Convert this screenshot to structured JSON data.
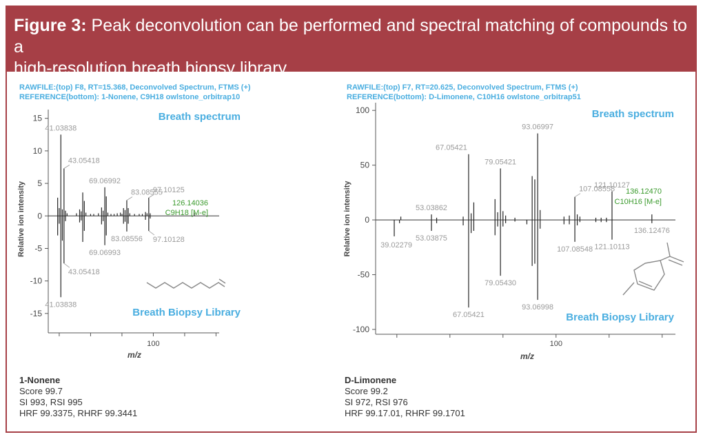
{
  "figure": {
    "label": "Figure 3:",
    "caption_line1": " Peak deconvolution can be performed and spectral matching of compounds to a",
    "caption_line2": "high-resolution breath biopsy library."
  },
  "colors": {
    "frame": "#a63f46",
    "accent": "#4aaee0",
    "green": "#3a9a2c",
    "peak_label": "#9a9a9a",
    "line": "#222222"
  },
  "chart_data": [
    {
      "type": "bar",
      "header1": "RAWFILE:(top) F8, RT=15.368, Deconvolved Spectrum, FTMS (+)",
      "header2": "REFERENCE(bottom): 1-Nonene, C9H18 owlstone_orbitrap10",
      "top_title": "Breath spectrum",
      "bottom_title": "Breath Biopsy Library",
      "ylabel": "Relative ion intensity",
      "xlabel": "m/z",
      "ylim": [
        -16.5,
        15.5
      ],
      "yticks": [
        15,
        10,
        5,
        0,
        -5,
        -10,
        -15
      ],
      "xlim": [
        33,
        142
      ],
      "xticks": [
        40,
        60,
        80,
        100,
        120,
        140
      ],
      "xticklabels": [
        {
          "x": 100,
          "label": "100"
        }
      ],
      "structure": "1-nonene",
      "peaks": [
        [
          41.04,
          12.5
        ],
        [
          43.05,
          7.3
        ],
        [
          39.0,
          2.8
        ],
        [
          40.0,
          1.2
        ],
        [
          42.0,
          1.0
        ],
        [
          44.0,
          0.8
        ],
        [
          45.0,
          0.4
        ],
        [
          51.0,
          0.4
        ],
        [
          53.0,
          1.0
        ],
        [
          54.0,
          0.7
        ],
        [
          55.0,
          3.6
        ],
        [
          56.0,
          2.3
        ],
        [
          57.0,
          0.5
        ],
        [
          60.0,
          0.3
        ],
        [
          62.0,
          0.3
        ],
        [
          65.0,
          0.4
        ],
        [
          67.0,
          1.3
        ],
        [
          68.0,
          0.8
        ],
        [
          69.07,
          4.4
        ],
        [
          70.0,
          3.0
        ],
        [
          71.0,
          0.5
        ],
        [
          73.0,
          0.3
        ],
        [
          75.0,
          0.3
        ],
        [
          77.0,
          0.4
        ],
        [
          79.0,
          0.5
        ],
        [
          80.0,
          0.3
        ],
        [
          81.0,
          1.2
        ],
        [
          82.0,
          0.9
        ],
        [
          83.09,
          2.4
        ],
        [
          84.0,
          1.2
        ],
        [
          85.0,
          0.4
        ],
        [
          88.0,
          0.3
        ],
        [
          91.0,
          0.3
        ],
        [
          93.0,
          0.3
        ],
        [
          95.0,
          0.6
        ],
        [
          96.0,
          0.4
        ],
        [
          97.1,
          2.8
        ],
        [
          98.0,
          0.4
        ],
        [
          126.14,
          0.5
        ],
        [
          41.04,
          -12.5
        ],
        [
          43.05,
          -7.3
        ],
        [
          39.0,
          -3.0
        ],
        [
          40.0,
          -1.2
        ],
        [
          42.0,
          -3.8
        ],
        [
          44.0,
          -0.8
        ],
        [
          53.0,
          -1.0
        ],
        [
          54.0,
          -0.7
        ],
        [
          55.0,
          -4.0
        ],
        [
          56.0,
          -2.3
        ],
        [
          67.0,
          -1.3
        ],
        [
          68.0,
          -0.8
        ],
        [
          69.07,
          -4.5
        ],
        [
          70.0,
          -3.0
        ],
        [
          81.0,
          -1.2
        ],
        [
          82.0,
          -0.9
        ],
        [
          83.09,
          -2.4
        ],
        [
          84.0,
          -1.2
        ],
        [
          95.0,
          -0.6
        ],
        [
          97.1,
          -2.3
        ],
        [
          98.0,
          -0.4
        ]
      ],
      "labels": [
        {
          "text": "41.03838",
          "x": 41.04,
          "y": 12.5,
          "pos": "top"
        },
        {
          "text": "43.05418",
          "x": 43.05,
          "y": 7.3,
          "pos": "topright"
        },
        {
          "text": "69.06992",
          "x": 69.07,
          "y": 4.4,
          "pos": "top"
        },
        {
          "text": "83.08555",
          "x": 83.09,
          "y": 2.4,
          "pos": "topright"
        },
        {
          "text": "97.10125",
          "x": 97.1,
          "y": 2.8,
          "pos": "topright"
        },
        {
          "text": "41.03838",
          "x": 41.04,
          "y": -12.5,
          "pos": "bottom"
        },
        {
          "text": "43.05418",
          "x": 43.05,
          "y": -7.3,
          "pos": "bottomright"
        },
        {
          "text": "69.06993",
          "x": 69.07,
          "y": -4.5,
          "pos": "bottom"
        },
        {
          "text": "83.08556",
          "x": 83.09,
          "y": -2.4,
          "pos": "bottom"
        },
        {
          "text": "97.10128",
          "x": 97.1,
          "y": -2.3,
          "pos": "bottomright"
        }
      ],
      "m_label": {
        "mass": "126.14036",
        "formula": "C9H18 [M-e]",
        "x": 126.14
      },
      "footer": {
        "name": "1-Nonene",
        "score": "Score 99.7",
        "si": "SI 993, RSI 995",
        "hrf": "HRF 99.3375, RHRF 99.3441"
      }
    },
    {
      "type": "bar",
      "header1": "RAWFILE:(top) F7, RT=20.625, Deconvolved Spectrum, FTMS (+)",
      "header2": "REFERENCE(bottom): D-Limonene, C10H16 owlstone_orbitrap51",
      "top_title": "Breath spectrum",
      "bottom_title": "Breath Biopsy Library",
      "ylabel": "Relative ion intensity",
      "xlabel": "m/z",
      "ylim": [
        -100,
        102
      ],
      "yticks": [
        100,
        50,
        0,
        -50,
        -100
      ],
      "xlim": [
        32,
        145
      ],
      "xticks": [
        40,
        60,
        80,
        100,
        120,
        140
      ],
      "xticklabels": [
        {
          "x": 100,
          "label": "100"
        }
      ],
      "structure": "d-limonene",
      "peaks": [
        [
          39.02,
          -15
        ],
        [
          41.0,
          -3
        ],
        [
          41.5,
          3
        ],
        [
          53.04,
          5
        ],
        [
          53.04,
          -10
        ],
        [
          55.0,
          2
        ],
        [
          55.0,
          -3
        ],
        [
          65.0,
          3
        ],
        [
          65.0,
          -5
        ],
        [
          67.05,
          60
        ],
        [
          67.05,
          -80
        ],
        [
          68.0,
          6
        ],
        [
          68.0,
          -12
        ],
        [
          69.0,
          16
        ],
        [
          69.0,
          -10
        ],
        [
          77.0,
          19
        ],
        [
          77.0,
          -14
        ],
        [
          78.0,
          7
        ],
        [
          78.0,
          -6
        ],
        [
          79.05,
          47
        ],
        [
          79.05,
          -51
        ],
        [
          80.0,
          8
        ],
        [
          80.0,
          -6
        ],
        [
          81.0,
          4
        ],
        [
          81.0,
          -3
        ],
        [
          84.5,
          2
        ],
        [
          84.5,
          -1.5
        ],
        [
          89.0,
          -4
        ],
        [
          91.0,
          40
        ],
        [
          91.0,
          -42
        ],
        [
          92.0,
          37
        ],
        [
          92.0,
          -40
        ],
        [
          93.07,
          79
        ],
        [
          93.07,
          -73
        ],
        [
          94.0,
          9
        ],
        [
          94.0,
          -8
        ],
        [
          103.0,
          3
        ],
        [
          103.0,
          -4
        ],
        [
          105.0,
          4
        ],
        [
          105.0,
          -4
        ],
        [
          107.09,
          21
        ],
        [
          107.09,
          -20
        ],
        [
          108.0,
          5
        ],
        [
          108.0,
          -5
        ],
        [
          109.0,
          3
        ],
        [
          109.0,
          -2
        ],
        [
          115.0,
          2
        ],
        [
          115.0,
          -2
        ],
        [
          117.0,
          2
        ],
        [
          117.0,
          -2
        ],
        [
          119.0,
          2
        ],
        [
          119.0,
          -2
        ],
        [
          121.1,
          26
        ],
        [
          121.1,
          -18
        ],
        [
          136.12,
          5
        ],
        [
          136.12,
          -3
        ]
      ],
      "labels": [
        {
          "text": "53.03862",
          "x": 53.04,
          "y": 5,
          "pos": "top"
        },
        {
          "text": "67.05421",
          "x": 67.05,
          "y": 60,
          "pos": "topleft"
        },
        {
          "text": "79.05421",
          "x": 79.05,
          "y": 47,
          "pos": "top"
        },
        {
          "text": "93.06997",
          "x": 93.07,
          "y": 79,
          "pos": "top"
        },
        {
          "text": "107.08558",
          "x": 107.09,
          "y": 21,
          "pos": "topright"
        },
        {
          "text": "121.10127",
          "x": 121.1,
          "y": 26,
          "pos": "top"
        },
        {
          "text": "39.02279",
          "x": 39.02,
          "y": -15,
          "pos": "bottomleft"
        },
        {
          "text": "53.03875",
          "x": 53.04,
          "y": -10,
          "pos": "bottom"
        },
        {
          "text": "67.05421",
          "x": 67.05,
          "y": -80,
          "pos": "bottom"
        },
        {
          "text": "79.05430",
          "x": 79.05,
          "y": -51,
          "pos": "bottom"
        },
        {
          "text": "93.06998",
          "x": 93.07,
          "y": -73,
          "pos": "bottom"
        },
        {
          "text": "107.08548",
          "x": 107.09,
          "y": -20,
          "pos": "bottom"
        },
        {
          "text": "121.10113",
          "x": 121.1,
          "y": -18,
          "pos": "bottom"
        },
        {
          "text": "136.12476",
          "x": 136.12,
          "y": -3,
          "pos": "bottom"
        }
      ],
      "m_label": {
        "mass": "136.12470",
        "formula": "C10H16 [M-e]",
        "x": 136.12
      },
      "footer": {
        "name": "D-Limonene",
        "score": "Score 99.2",
        "si": "SI 972, RSI 976",
        "hrf": "HRF 99.17.01, RHRF 99.1701"
      }
    }
  ]
}
